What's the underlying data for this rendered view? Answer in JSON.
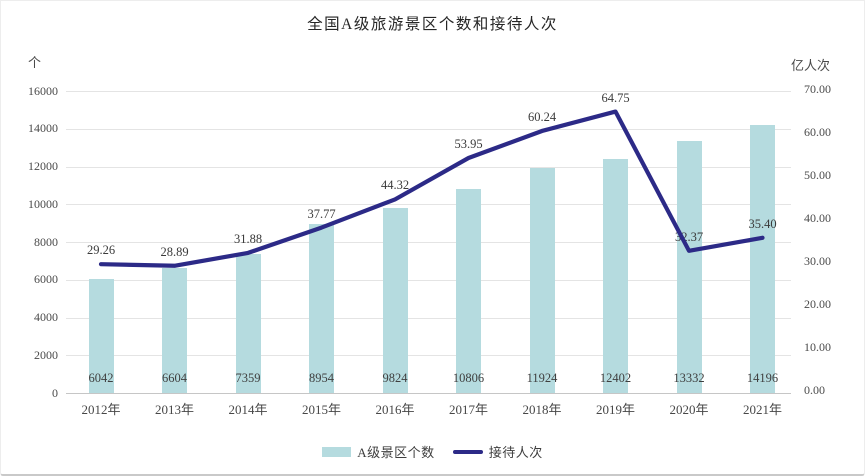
{
  "title": "全国A级旅游景区个数和接待人次",
  "left_axis": {
    "unit": "个",
    "ticks": [
      "16000",
      "14000",
      "12000",
      "10000",
      "8000",
      "6000",
      "4000",
      "2000",
      "0"
    ],
    "min": 0,
    "max": 16000
  },
  "right_axis": {
    "unit": "亿人次",
    "ticks": [
      "70.00",
      "60.00",
      "50.00",
      "40.00",
      "30.00",
      "20.00",
      "10.00",
      "0.00"
    ],
    "min": 0,
    "max": 70
  },
  "colors": {
    "bar": "#b5dbdf",
    "line": "#2c2a87",
    "grid": "#e4e4e4",
    "axis": "#c6c6c6"
  },
  "chart_data": {
    "type": "bar+line",
    "title": "全国A级旅游景区个数和接待人次",
    "categories": [
      "2012年",
      "2013年",
      "2014年",
      "2015年",
      "2016年",
      "2017年",
      "2018年",
      "2019年",
      "2020年",
      "2021年"
    ],
    "series": [
      {
        "name": "A级景区个数",
        "type": "bar",
        "axis": "left",
        "color": "#b5dbdf",
        "values": [
          6042,
          6604,
          7359,
          8954,
          9824,
          10806,
          11924,
          12402,
          13332,
          14196
        ]
      },
      {
        "name": "接待人次",
        "type": "line",
        "axis": "right",
        "color": "#2c2a87",
        "values": [
          29.26,
          28.89,
          31.88,
          37.77,
          44.32,
          53.95,
          60.24,
          64.75,
          32.37,
          35.4
        ]
      }
    ],
    "left_ylim": [
      0,
      16000
    ],
    "right_ylim": [
      0,
      70
    ],
    "grid": true,
    "legend_position": "bottom"
  }
}
